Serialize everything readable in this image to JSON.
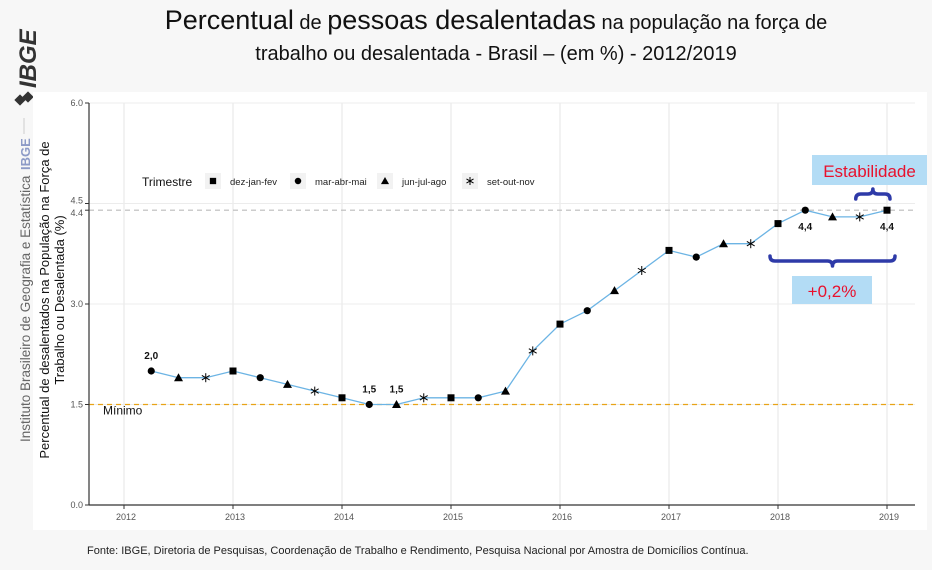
{
  "header": {
    "title_parts": [
      {
        "text": "Percentual",
        "size": "big"
      },
      {
        "text": " de ",
        "size": "small"
      },
      {
        "text": "pessoas desalentadas",
        "size": "big"
      },
      {
        "text": " na população na força de",
        "size": "small"
      }
    ],
    "title_line2": "trabalho ou desalentada - Brasil – (em %) - 2012/2019"
  },
  "sidebar": {
    "logo": "IBGE",
    "institute_name": "Instituto Brasileiro de Geografia e Estatística",
    "institute_abbr": "IBGE"
  },
  "footer": {
    "source": "Fonte: IBGE, Diretoria de Pesquisas, Coordenação de Trabalho e Rendimento, Pesquisa Nacional por Amostra de Domicílios Contínua."
  },
  "colors": {
    "line": "#6cb4e4",
    "minimum_line": "#e8a317",
    "reference_line": "#bbbbbb",
    "brace": "#2e3aa8",
    "annotation_bg": "#b3dcf5",
    "annotation_text": "#e8112d"
  },
  "chart_data": {
    "type": "line",
    "title": "Percentual de pessoas desalentadas na população na força de trabalho ou desalentada - Brasil – (em %) - 2012/2019",
    "xlabel": "",
    "ylabel": "Percentual de desalentados na População na Força de Trabalho ou Desalentada (%)",
    "ylim": [
      0,
      6.0
    ],
    "xlim": [
      2011.6,
      2019.2
    ],
    "yticks": [
      0.0,
      1.5,
      3.0,
      4.4,
      4.5,
      6.0
    ],
    "ytick_labels": [
      "0.0",
      "1.5",
      "3.0",
      "4.4",
      "4.5",
      "6.0"
    ],
    "xticks": [
      2012,
      2013,
      2014,
      2015,
      2016,
      2017,
      2018,
      2019
    ],
    "xtick_labels": [
      "2012",
      "2013",
      "2014",
      "2015",
      "2016",
      "2017",
      "2018",
      "2019"
    ],
    "grid": true,
    "legend": {
      "title": "Trimestre",
      "placement": "top-left",
      "entries": [
        {
          "label": "dez-jan-fev",
          "marker": "square"
        },
        {
          "label": "mar-abr-mai",
          "marker": "circle"
        },
        {
          "label": "jun-jul-ago",
          "marker": "triangle"
        },
        {
          "label": "set-out-nov",
          "marker": "asterisk"
        }
      ]
    },
    "series": [
      {
        "name": "Percentual de desalentados",
        "points": [
          {
            "x": 2012.25,
            "y": 2.0,
            "quarter": "mar-abr-mai",
            "label": "2,0"
          },
          {
            "x": 2012.5,
            "y": 1.9,
            "quarter": "jun-jul-ago"
          },
          {
            "x": 2012.75,
            "y": 1.9,
            "quarter": "set-out-nov"
          },
          {
            "x": 2013.0,
            "y": 2.0,
            "quarter": "dez-jan-fev"
          },
          {
            "x": 2013.25,
            "y": 1.9,
            "quarter": "mar-abr-mai"
          },
          {
            "x": 2013.5,
            "y": 1.8,
            "quarter": "jun-jul-ago"
          },
          {
            "x": 2013.75,
            "y": 1.7,
            "quarter": "set-out-nov"
          },
          {
            "x": 2014.0,
            "y": 1.6,
            "quarter": "dez-jan-fev"
          },
          {
            "x": 2014.25,
            "y": 1.5,
            "quarter": "mar-abr-mai",
            "label": "1,5"
          },
          {
            "x": 2014.5,
            "y": 1.5,
            "quarter": "jun-jul-ago",
            "label": "1,5"
          },
          {
            "x": 2014.75,
            "y": 1.6,
            "quarter": "set-out-nov"
          },
          {
            "x": 2015.0,
            "y": 1.6,
            "quarter": "dez-jan-fev"
          },
          {
            "x": 2015.25,
            "y": 1.6,
            "quarter": "mar-abr-mai"
          },
          {
            "x": 2015.5,
            "y": 1.7,
            "quarter": "jun-jul-ago"
          },
          {
            "x": 2015.75,
            "y": 2.3,
            "quarter": "set-out-nov"
          },
          {
            "x": 2016.0,
            "y": 2.7,
            "quarter": "dez-jan-fev"
          },
          {
            "x": 2016.25,
            "y": 2.9,
            "quarter": "mar-abr-mai"
          },
          {
            "x": 2016.5,
            "y": 3.2,
            "quarter": "jun-jul-ago"
          },
          {
            "x": 2016.75,
            "y": 3.5,
            "quarter": "set-out-nov"
          },
          {
            "x": 2017.0,
            "y": 3.8,
            "quarter": "dez-jan-fev"
          },
          {
            "x": 2017.25,
            "y": 3.7,
            "quarter": "mar-abr-mai"
          },
          {
            "x": 2017.5,
            "y": 3.9,
            "quarter": "jun-jul-ago"
          },
          {
            "x": 2017.75,
            "y": 3.9,
            "quarter": "set-out-nov"
          },
          {
            "x": 2018.0,
            "y": 4.2,
            "quarter": "dez-jan-fev"
          },
          {
            "x": 2018.25,
            "y": 4.4,
            "quarter": "mar-abr-mai",
            "label": "4,4"
          },
          {
            "x": 2018.5,
            "y": 4.3,
            "quarter": "jun-jul-ago"
          },
          {
            "x": 2018.75,
            "y": 4.3,
            "quarter": "set-out-nov"
          },
          {
            "x": 2019.0,
            "y": 4.4,
            "quarter": "dez-jan-fev",
            "label": "4,4"
          }
        ]
      }
    ],
    "reference_lines": [
      {
        "y": 1.5,
        "label": "Mínimo",
        "style": "dashed",
        "color_key": "minimum_line"
      },
      {
        "y": 4.4,
        "label": "",
        "style": "dashed",
        "color_key": "reference_line"
      }
    ],
    "annotations": [
      {
        "text": "Estabilidade",
        "from_x": 2018.75,
        "to_x": 2019.0,
        "position": "above"
      },
      {
        "text": "+0,2%",
        "from_x": 2018.0,
        "to_x": 2019.0,
        "position": "below"
      }
    ]
  }
}
